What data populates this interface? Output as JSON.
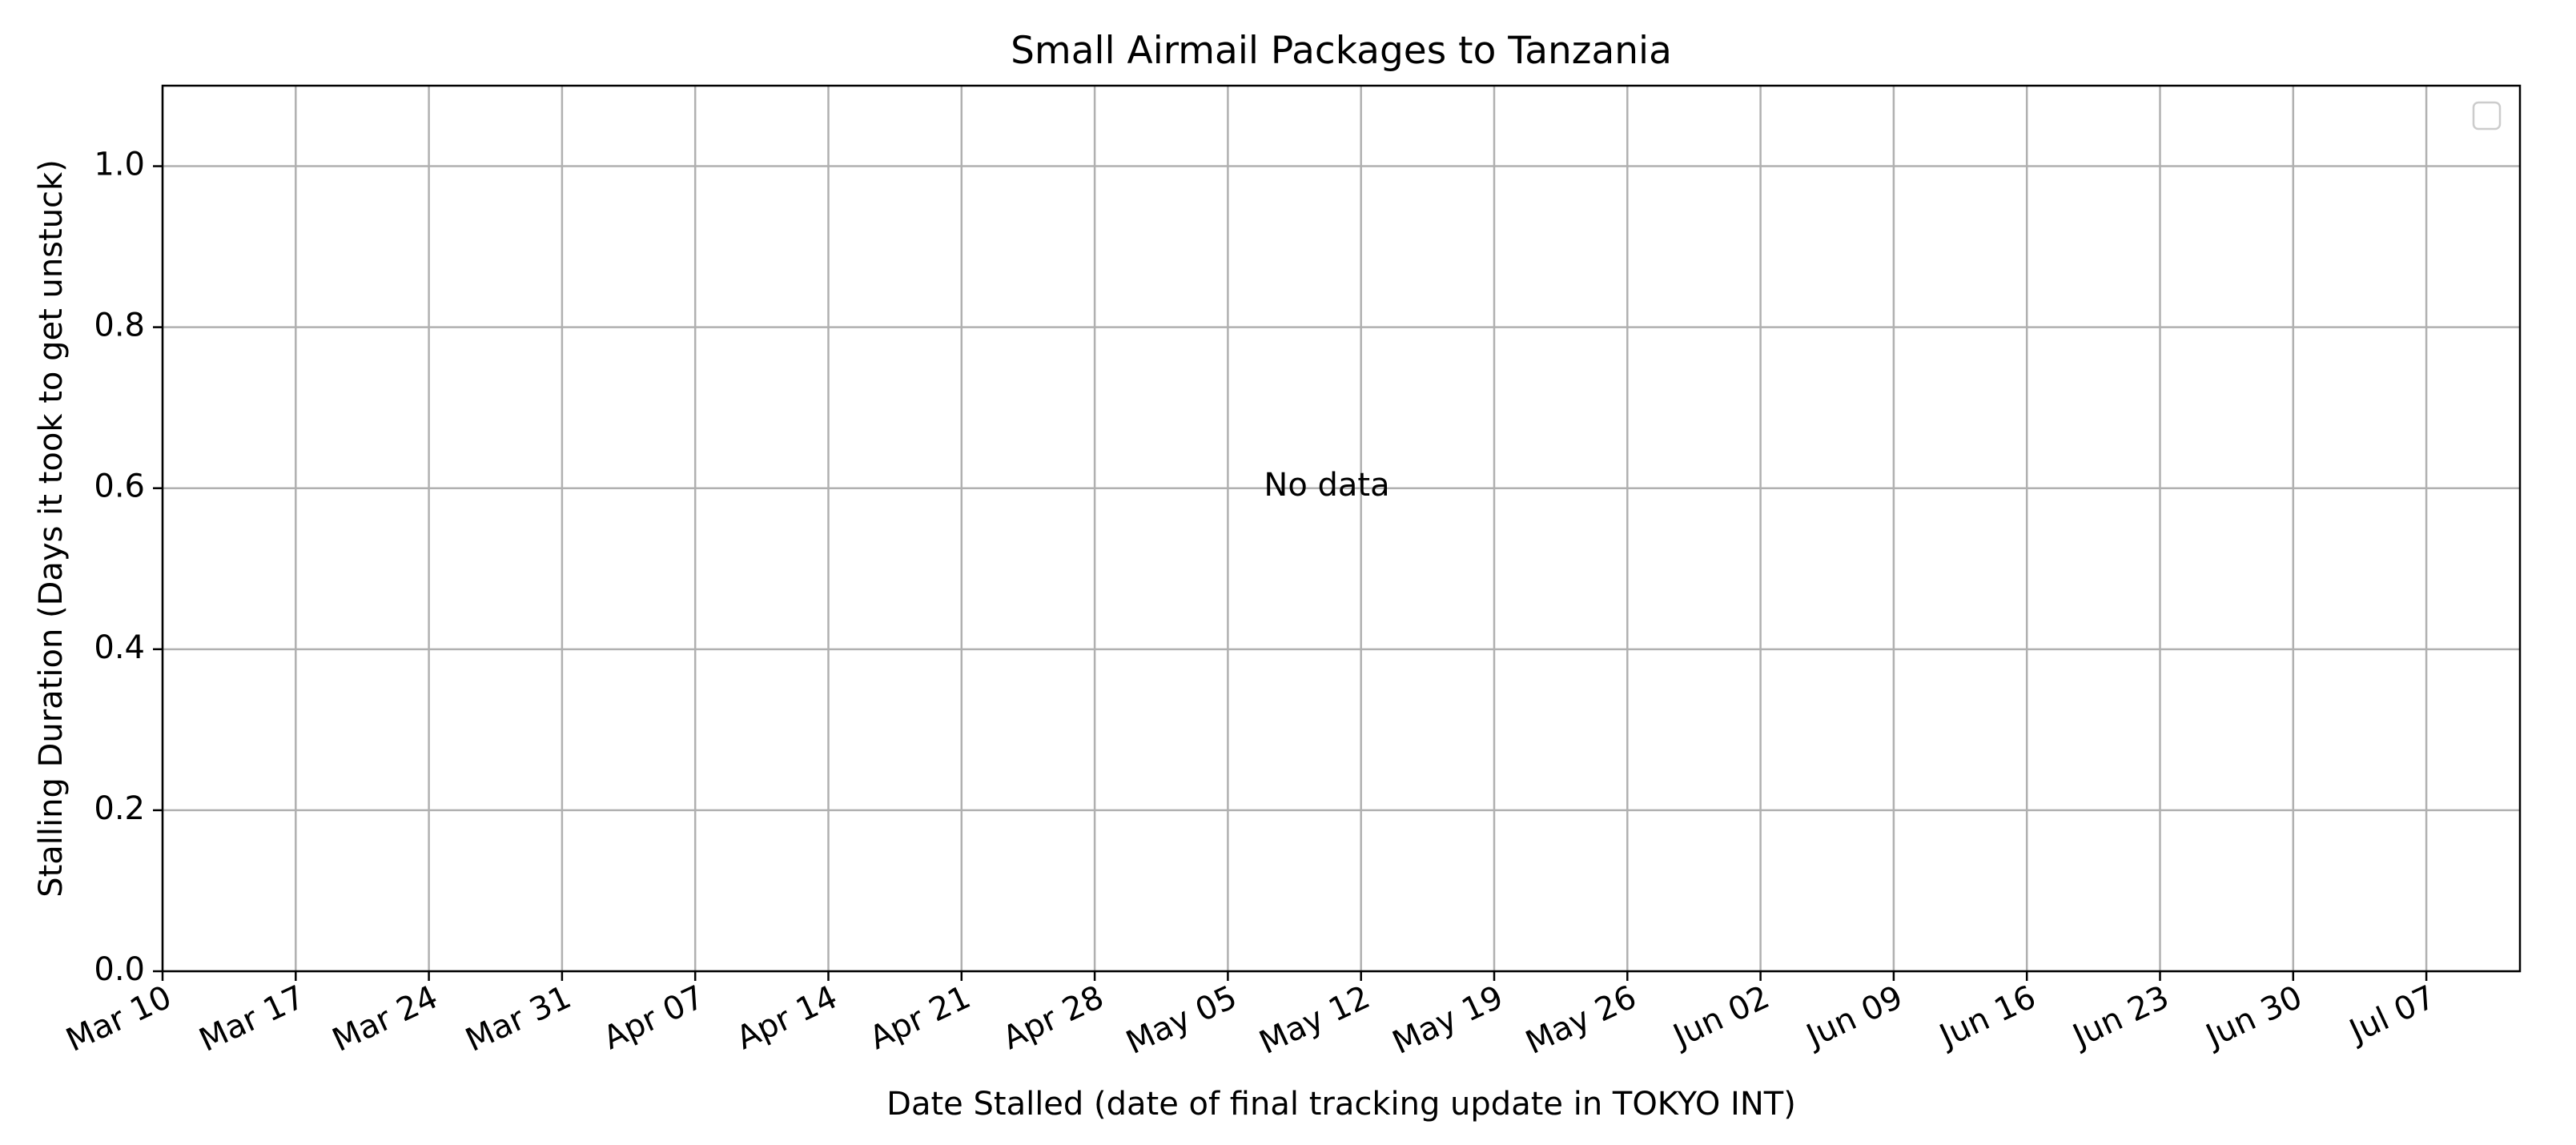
{
  "chart_data": {
    "type": "scatter",
    "title": "Small Airmail Packages to Tanzania",
    "xlabel": "Date Stalled (date of final tracking update in TOKYO INT)",
    "ylabel": "Stalling Duration (Days it took to get unstuck)",
    "x_tick_labels": [
      "Mar 10",
      "Mar 17",
      "Mar 24",
      "Mar 31",
      "Apr 07",
      "Apr 14",
      "Apr 21",
      "Apr 28",
      "May 05",
      "May 12",
      "May 19",
      "May 26",
      "Jun 02",
      "Jun 09",
      "Jun 16",
      "Jun 23",
      "Jun 30",
      "Jul 07"
    ],
    "y_tick_labels": [
      "0.0",
      "0.2",
      "0.4",
      "0.6",
      "0.8",
      "1.0"
    ],
    "y_ticks": [
      0.0,
      0.2,
      0.4,
      0.6,
      0.8,
      1.0
    ],
    "ylim": [
      0,
      1.1
    ],
    "series": [],
    "annotation": "No data",
    "grid": true,
    "legend": "top-right"
  }
}
